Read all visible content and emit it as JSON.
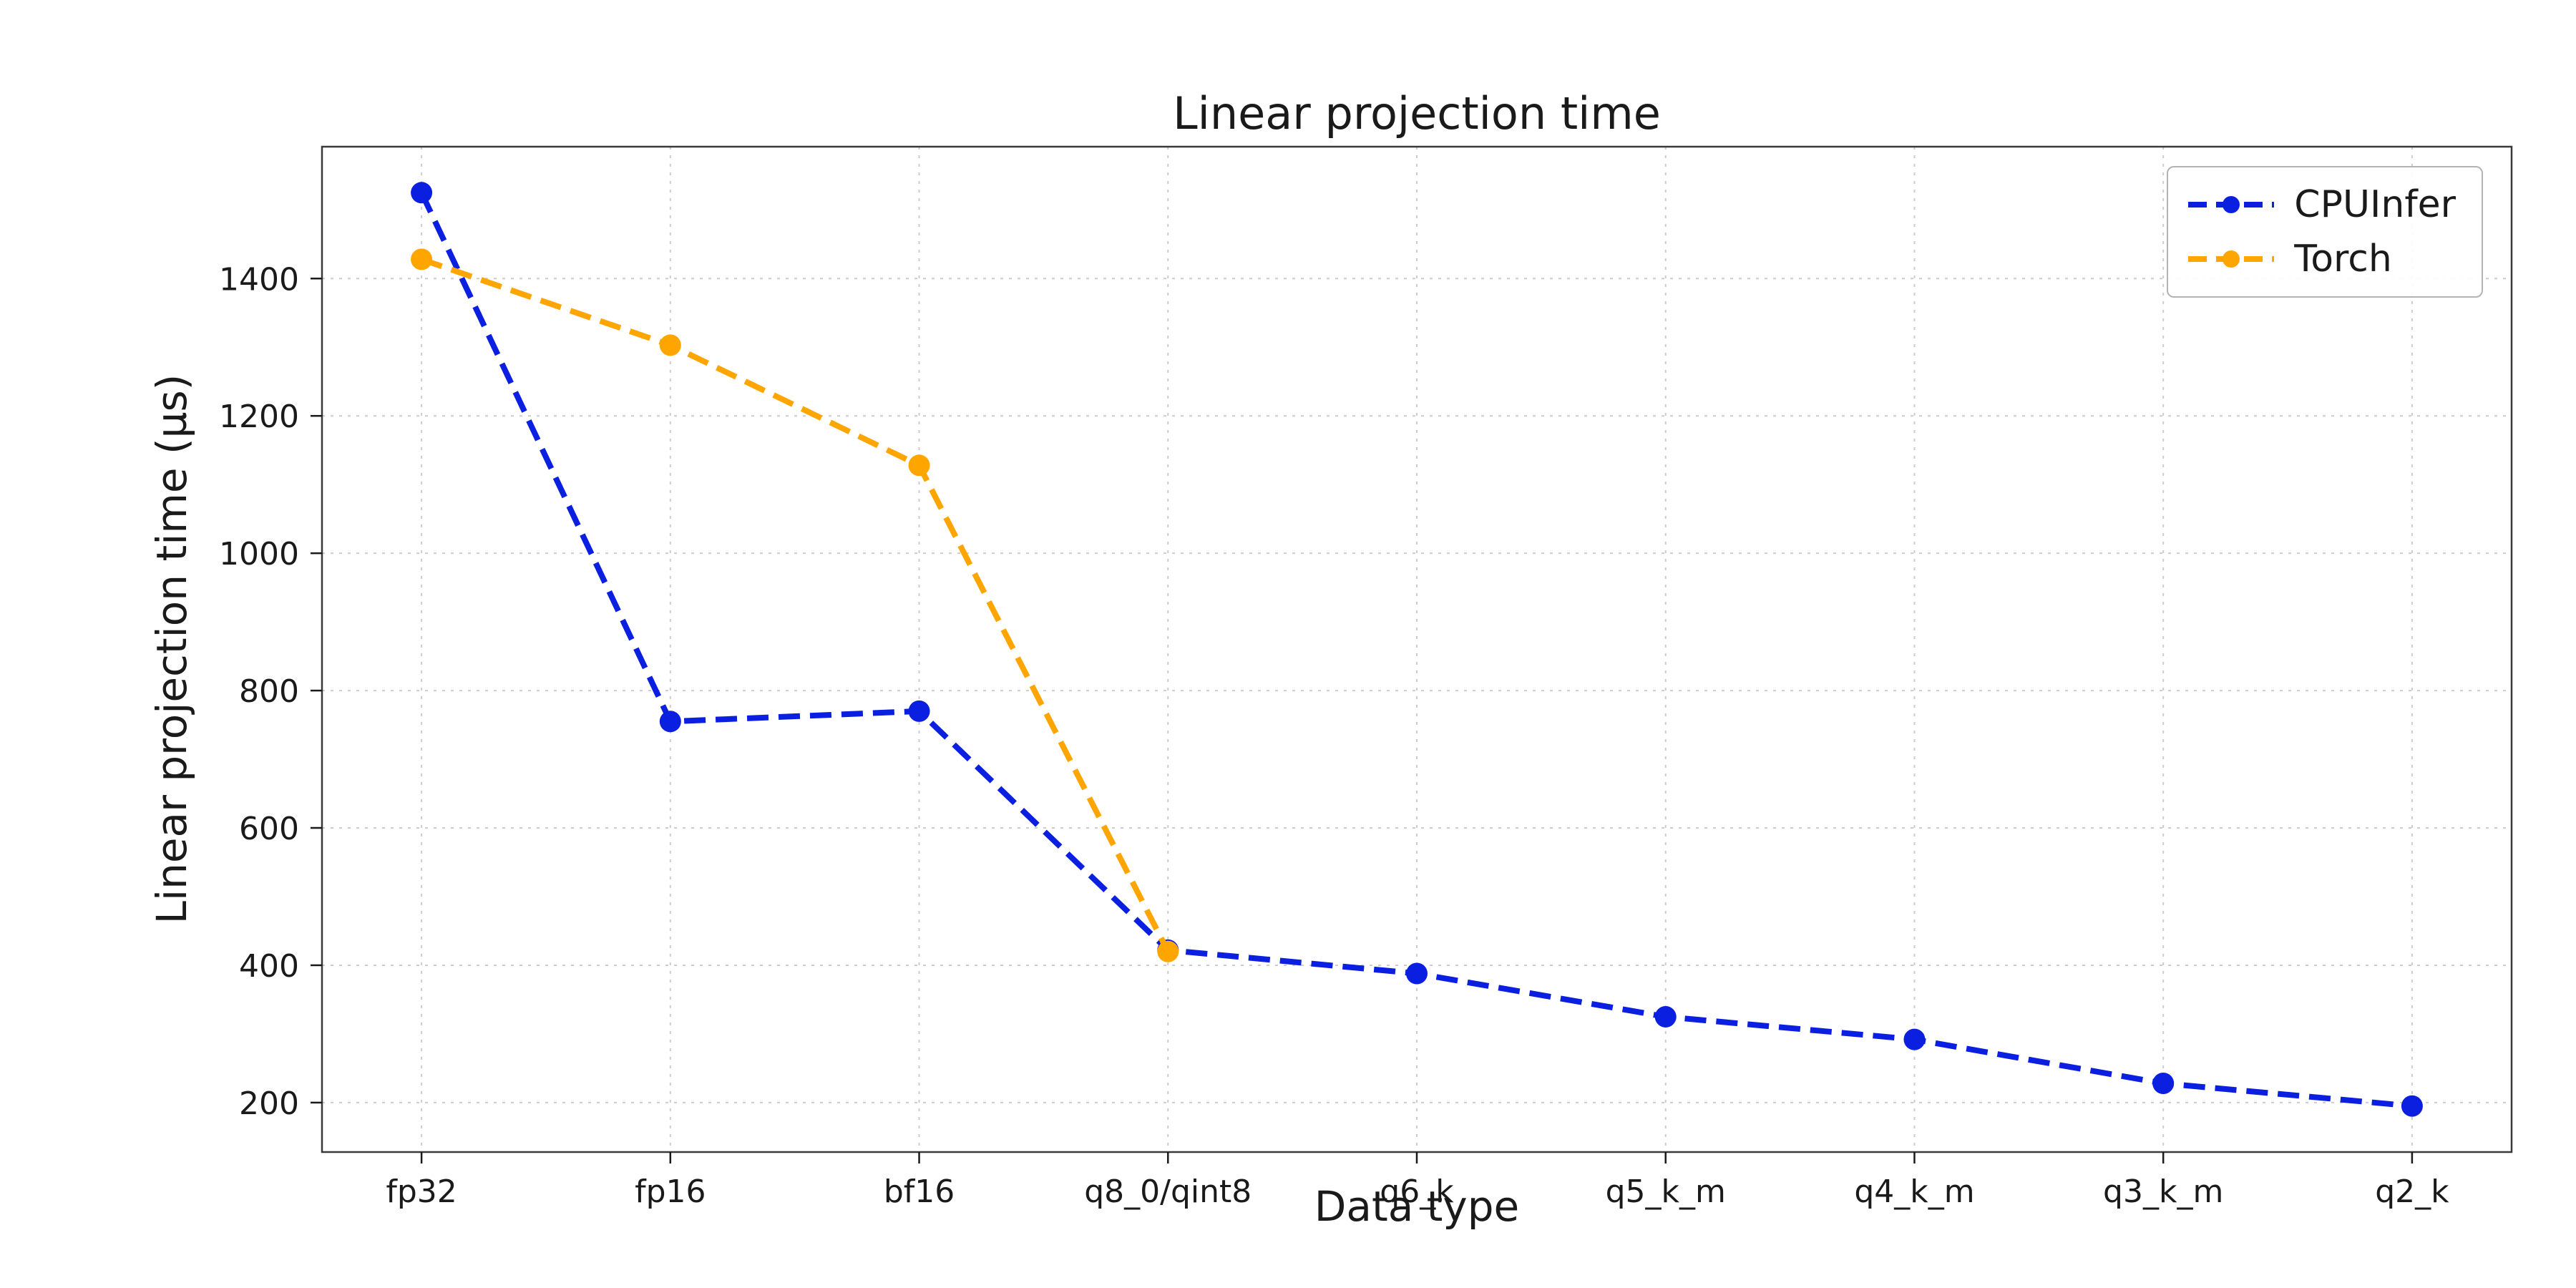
{
  "chart_data": {
    "type": "line",
    "title": "Linear projection time",
    "xlabel": "Data type",
    "ylabel": "Linear projection time (µs)",
    "categories": [
      "fp32",
      "fp16",
      "bf16",
      "q8_0/qint8",
      "q6_k",
      "q5_k_m",
      "q4_k_m",
      "q3_k_m",
      "q2_k"
    ],
    "series": [
      {
        "name": "CPUInfer",
        "color": "#0a1fe0",
        "values": [
          1525,
          755,
          770,
          422,
          388,
          325,
          292,
          228,
          195
        ]
      },
      {
        "name": "Torch",
        "color": "#ffa500",
        "values": [
          1428,
          1303,
          1128,
          420
        ]
      }
    ],
    "yticks": [
      200,
      400,
      600,
      800,
      1000,
      1200,
      1400
    ],
    "ylim": [
      128,
      1592
    ],
    "xlim": [
      -0.4,
      8.4
    ],
    "grid": true,
    "grid_style": "dashed",
    "line_style": "dashed",
    "marker": "circle",
    "legend_position": "upper right"
  }
}
